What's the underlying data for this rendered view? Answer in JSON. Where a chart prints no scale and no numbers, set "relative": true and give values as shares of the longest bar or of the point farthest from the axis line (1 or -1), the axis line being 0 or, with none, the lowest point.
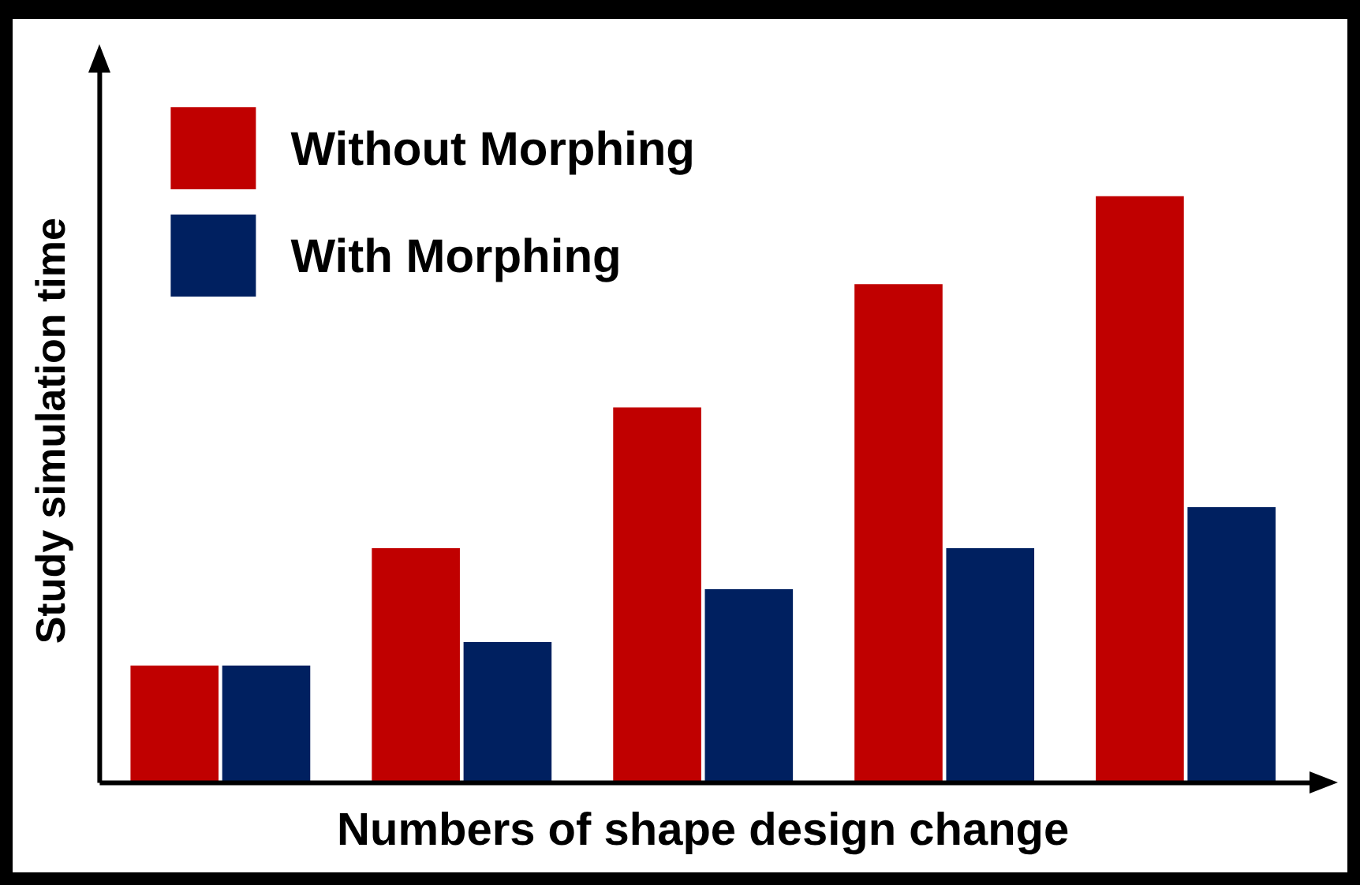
{
  "chart_data": {
    "type": "bar",
    "xlabel": "Numbers of shape design change",
    "ylabel": "Study simulation time",
    "relative": true,
    "categories": [
      null,
      null,
      null,
      null,
      null
    ],
    "grid": false,
    "legend": "top left",
    "series": [
      {
        "name": "Without Morphing",
        "color": "#c00000",
        "values": [
          0.2,
          0.4,
          0.64,
          0.85,
          1
        ]
      },
      {
        "name": "With Morphing",
        "color": "#002060",
        "values": [
          0.2,
          0.24,
          0.33,
          0.4,
          0.47
        ]
      }
    ]
  }
}
